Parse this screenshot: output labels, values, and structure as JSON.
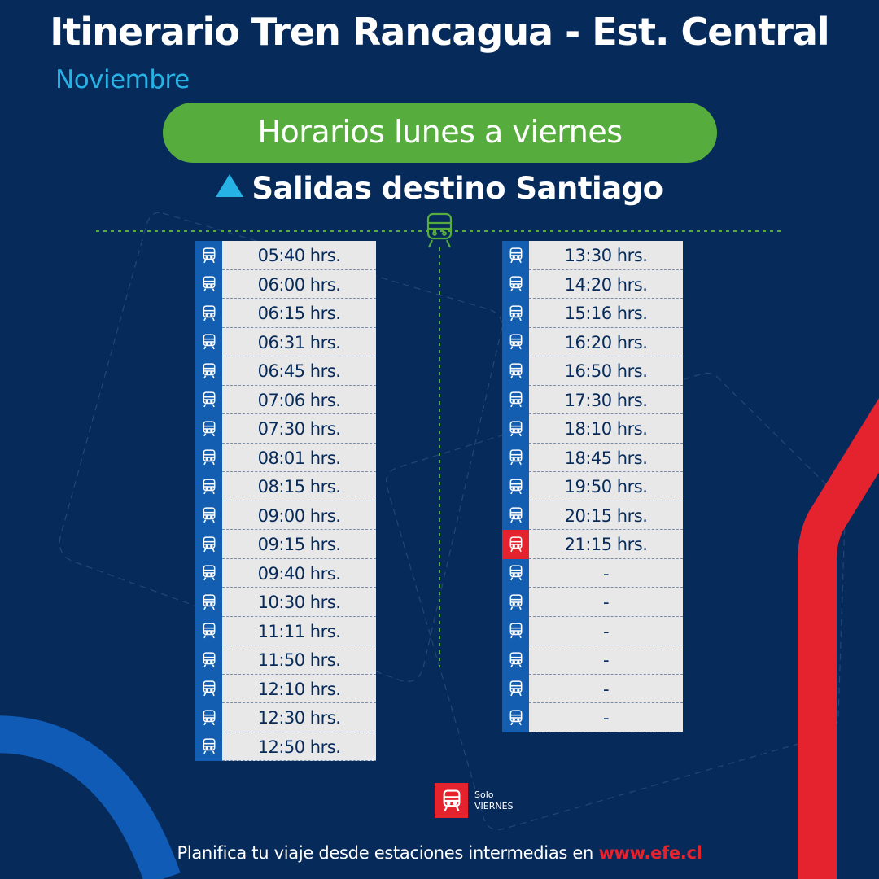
{
  "header": {
    "title": "Itinerario Tren Rancagua - Est. Central",
    "month": "Noviembre"
  },
  "banner": {
    "label": "Horarios lunes a viernes"
  },
  "direction": {
    "label": "Salidas destino Santiago",
    "icon": "triangle-up-icon"
  },
  "schedule": {
    "left": [
      {
        "time": "05:40 hrs.",
        "friday_only": false
      },
      {
        "time": "06:00 hrs.",
        "friday_only": false
      },
      {
        "time": "06:15 hrs.",
        "friday_only": false
      },
      {
        "time": "06:31 hrs.",
        "friday_only": false
      },
      {
        "time": "06:45 hrs.",
        "friday_only": false
      },
      {
        "time": "07:06 hrs.",
        "friday_only": false
      },
      {
        "time": "07:30 hrs.",
        "friday_only": false
      },
      {
        "time": "08:01 hrs.",
        "friday_only": false
      },
      {
        "time": "08:15 hrs.",
        "friday_only": false
      },
      {
        "time": "09:00 hrs.",
        "friday_only": false
      },
      {
        "time": "09:15 hrs.",
        "friday_only": false
      },
      {
        "time": "09:40 hrs.",
        "friday_only": false
      },
      {
        "time": "10:30 hrs.",
        "friday_only": false
      },
      {
        "time": "11:11 hrs.",
        "friday_only": false
      },
      {
        "time": "11:50 hrs.",
        "friday_only": false
      },
      {
        "time": "12:10 hrs.",
        "friday_only": false
      },
      {
        "time": "12:30 hrs.",
        "friday_only": false
      },
      {
        "time": "12:50 hrs.",
        "friday_only": false
      }
    ],
    "right": [
      {
        "time": "13:30 hrs.",
        "friday_only": false
      },
      {
        "time": "14:20 hrs.",
        "friday_only": false
      },
      {
        "time": "15:16 hrs.",
        "friday_only": false
      },
      {
        "time": "16:20 hrs.",
        "friday_only": false
      },
      {
        "time": "16:50 hrs.",
        "friday_only": false
      },
      {
        "time": "17:30 hrs.",
        "friday_only": false
      },
      {
        "time": "18:10 hrs.",
        "friday_only": false
      },
      {
        "time": "18:45 hrs.",
        "friday_only": false
      },
      {
        "time": "19:50 hrs.",
        "friday_only": false
      },
      {
        "time": "20:15 hrs.",
        "friday_only": false
      },
      {
        "time": "21:15 hrs.",
        "friday_only": true
      },
      {
        "time": "-",
        "friday_only": false
      },
      {
        "time": "-",
        "friday_only": false
      },
      {
        "time": "-",
        "friday_only": false
      },
      {
        "time": "-",
        "friday_only": false
      },
      {
        "time": "-",
        "friday_only": false
      },
      {
        "time": "-",
        "friday_only": false
      }
    ]
  },
  "legend": {
    "line1": "Solo",
    "line2": "VIERNES",
    "icon": "train-icon"
  },
  "footer": {
    "text": "Planifica tu viaje desde estaciones intermedias en ",
    "link": "www.efe.cl"
  },
  "colors": {
    "background": "#062a5a",
    "accent_green": "#56ad3d",
    "accent_cyan": "#27b2e5",
    "icon_blue": "#135eb0",
    "friday_red": "#e5232f"
  }
}
